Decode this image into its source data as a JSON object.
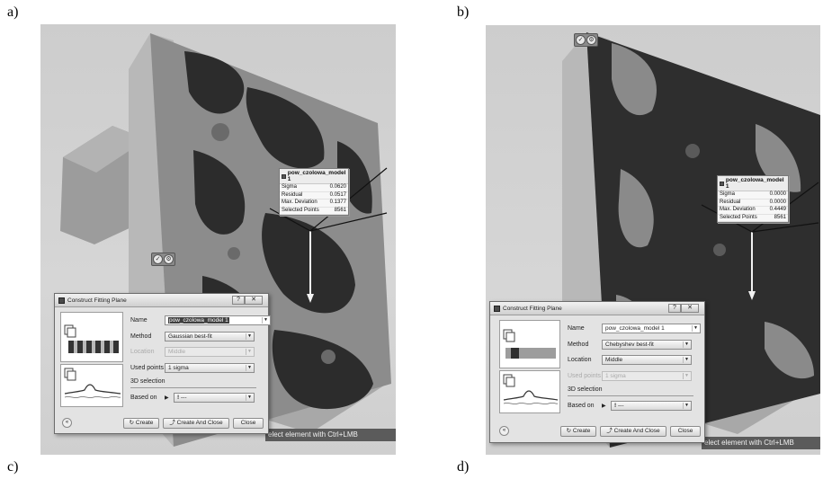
{
  "figure_labels": {
    "a": "a)",
    "b": "b)",
    "c": "c)",
    "d": "d)"
  },
  "panels": [
    {
      "info": {
        "title": "pow_czolowa_model 1",
        "rows": [
          {
            "label": "Sigma",
            "value": "0.0620"
          },
          {
            "label": "Residual",
            "value": "0.0517"
          },
          {
            "label": "Max. Deviation",
            "value": "0.1377"
          },
          {
            "label": "Selected Points",
            "value": "8561"
          }
        ]
      },
      "dialog": {
        "title": "Construct Fitting Plane",
        "name_label": "Name",
        "name_value": "pow_czolowa_model 1",
        "method_label": "Method",
        "method_value": "Gaussian best-fit",
        "location_label": "Location",
        "location_value": "Middle",
        "used_points_label": "Used points",
        "used_points_value": "1 sigma",
        "section_3d": "3D selection",
        "based_on_label": "Based on",
        "based_on_value": "---",
        "create_label": "Create",
        "create_close_label": "Create And Close",
        "close_label": "Close"
      },
      "status": "elect element with Ctrl+LMB"
    },
    {
      "info": {
        "title": "pow_czolowa_model 1",
        "rows": [
          {
            "label": "Sigma",
            "value": "0.0000"
          },
          {
            "label": "Residual",
            "value": "0.0000"
          },
          {
            "label": "Max. Deviation",
            "value": "0.4449"
          },
          {
            "label": "Selected Points",
            "value": "8561"
          }
        ]
      },
      "dialog": {
        "title": "Construct Fitting Plane",
        "name_label": "Name",
        "name_value": "pow_czolowa_model 1",
        "method_label": "Method",
        "method_value": "Chebyshev best-fit",
        "location_label": "Location",
        "location_value": "Middle",
        "used_points_label": "Used points",
        "used_points_value": "1 sigma",
        "section_3d": "3D selection",
        "based_on_label": "Based on",
        "based_on_value": "---",
        "create_label": "Create",
        "create_close_label": "Create And Close",
        "close_label": "Close"
      },
      "status": "elect element with Ctrl+LMB"
    }
  ]
}
